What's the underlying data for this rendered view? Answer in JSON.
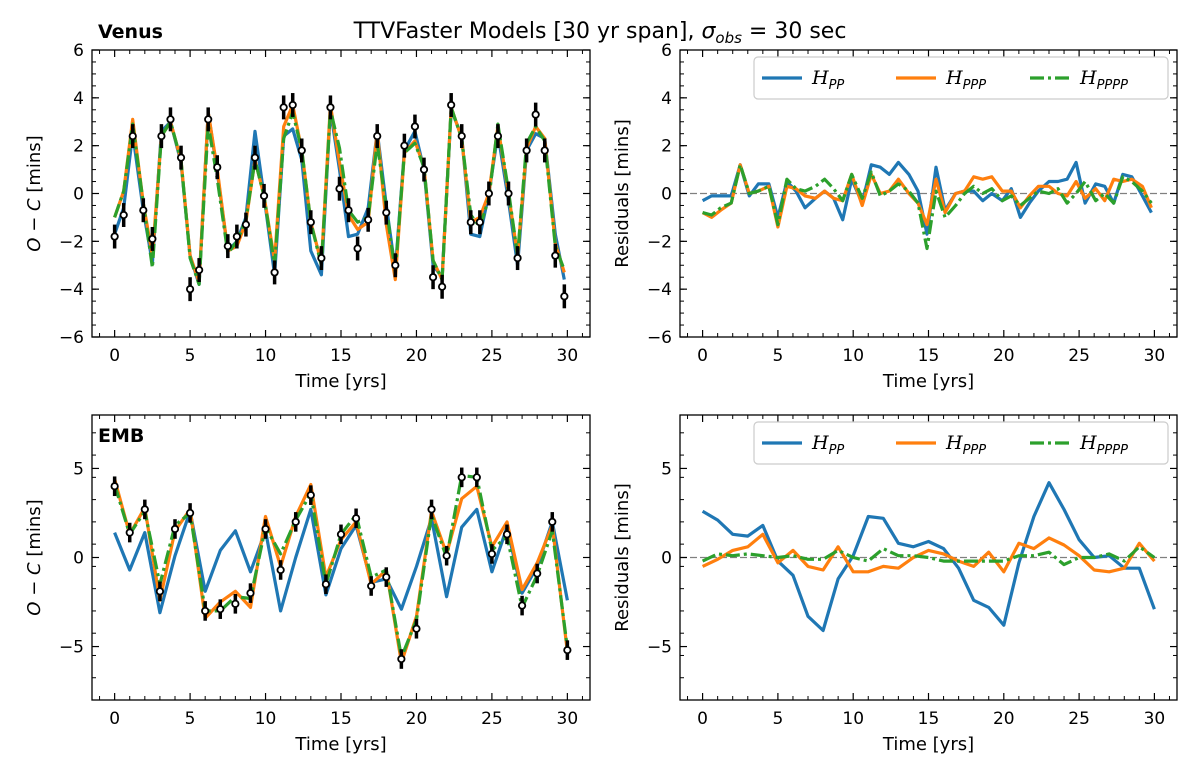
{
  "figure": {
    "title_prefix": "TTVFaster Models [30 yr span], ",
    "title_math": "σ_obs = 30 sec"
  },
  "colors": {
    "PP": "#1f77b4",
    "PPP": "#ff7f0e",
    "PPPP": "#2ca02c",
    "obs": "#000000",
    "zero_line": "#808080"
  },
  "legend_labels": [
    "H_PP",
    "H_PPP",
    "H_PPPP"
  ],
  "chart_data": [
    {
      "id": "venus_oc",
      "type": "line",
      "panel_label": "Venus",
      "xlabel": "Time [yrs]",
      "ylabel": "O − C [mins]",
      "xlim": [
        -1.5,
        31.5
      ],
      "ylim": [
        -6,
        6
      ],
      "xticks": [
        0,
        5,
        10,
        15,
        20,
        25,
        30
      ],
      "yticks": [
        -6,
        -4,
        -2,
        0,
        2,
        4,
        6
      ],
      "legend": "none",
      "x": [
        0,
        0.6,
        1.2,
        1.9,
        2.5,
        3.1,
        3.7,
        4.4,
        5.0,
        5.6,
        6.2,
        6.8,
        7.5,
        8.1,
        8.7,
        9.3,
        9.9,
        10.6,
        11.2,
        11.8,
        12.4,
        13.0,
        13.7,
        14.3,
        14.9,
        15.5,
        16.1,
        16.8,
        17.4,
        18.0,
        18.6,
        19.2,
        19.9,
        20.5,
        21.1,
        21.7,
        22.3,
        23.0,
        23.6,
        24.2,
        24.8,
        25.4,
        26.1,
        26.7,
        27.3,
        27.9,
        28.5,
        29.2,
        29.8
      ],
      "series": [
        {
          "name": "H_PP",
          "key": "PP",
          "style": "solid",
          "values": [
            -1.7,
            -0.6,
            2.5,
            -0.7,
            -2.9,
            2.6,
            3.0,
            1.3,
            -2.6,
            -3.8,
            3.4,
            0.9,
            -2.4,
            -2.0,
            -1.0,
            2.6,
            -0.1,
            -3.4,
            2.4,
            2.7,
            1.4,
            -2.4,
            -3.4,
            3.5,
            1.0,
            -1.8,
            -1.7,
            -0.6,
            2.6,
            -0.5,
            -3.2,
            1.8,
            2.6,
            1.0,
            -3.0,
            -3.5,
            3.5,
            2.4,
            -1.7,
            -1.8,
            0.0,
            2.5,
            -0.3,
            -3.0,
            1.8,
            2.5,
            2.3,
            -1.7,
            -3.6
          ]
        },
        {
          "name": "H_PPP",
          "key": "PPP",
          "style": "solid",
          "values": [
            -1.0,
            0.1,
            3.1,
            -0.4,
            -2.6,
            2.4,
            3.0,
            1.4,
            -2.6,
            -3.7,
            3.4,
            1.0,
            -2.4,
            -2.2,
            -1.2,
            1.4,
            -0.1,
            -2.8,
            2.8,
            3.7,
            1.8,
            -1.2,
            -2.9,
            3.7,
            1.3,
            -0.9,
            -1.5,
            -1.2,
            2.6,
            -1.3,
            -3.6,
            1.7,
            2.2,
            1.1,
            -2.8,
            -3.6,
            3.6,
            2.3,
            -1.2,
            -1.0,
            0.0,
            2.8,
            0.0,
            -2.6,
            1.9,
            2.8,
            2.3,
            -2.1,
            -3.3
          ]
        },
        {
          "name": "H_PPPP",
          "key": "PPPP",
          "style": "dashdot",
          "values": [
            -1.0,
            0.1,
            2.9,
            -0.4,
            -3.1,
            2.4,
            3.0,
            1.4,
            -2.7,
            -3.8,
            2.9,
            0.6,
            -2.5,
            -2.0,
            -1.1,
            1.4,
            -0.1,
            -3.0,
            2.3,
            3.4,
            1.8,
            -1.2,
            -3.0,
            3.5,
            1.9,
            -0.7,
            -1.2,
            -1.0,
            2.1,
            -0.6,
            -3.3,
            1.7,
            2.1,
            1.1,
            -2.8,
            -3.6,
            3.6,
            2.3,
            -0.9,
            -1.4,
            -0.2,
            2.9,
            0.1,
            -2.6,
            2.1,
            2.8,
            2.2,
            -2.2,
            -3.2
          ]
        }
      ],
      "observations": {
        "x": [
          0,
          0.6,
          1.2,
          1.9,
          2.5,
          3.1,
          3.7,
          4.4,
          5.0,
          5.6,
          6.2,
          6.8,
          7.5,
          8.1,
          8.7,
          9.3,
          9.9,
          10.6,
          11.2,
          11.8,
          12.4,
          13.0,
          13.7,
          14.3,
          14.9,
          15.5,
          16.1,
          16.8,
          17.4,
          18.0,
          18.6,
          19.2,
          19.9,
          20.5,
          21.1,
          21.7,
          22.3,
          23.0,
          23.6,
          24.2,
          24.8,
          25.4,
          26.1,
          26.7,
          27.3,
          27.9,
          28.5,
          29.2,
          29.8
        ],
        "values": [
          -1.8,
          -0.9,
          2.4,
          -0.7,
          -1.9,
          2.4,
          3.1,
          1.5,
          -4.0,
          -3.2,
          3.1,
          1.1,
          -2.2,
          -1.8,
          -1.3,
          1.5,
          -0.1,
          -3.3,
          3.6,
          3.7,
          1.8,
          -1.2,
          -2.7,
          3.6,
          0.2,
          -0.7,
          -2.3,
          -1.1,
          2.4,
          -0.8,
          -3.0,
          2.0,
          2.8,
          1.0,
          -3.5,
          -3.9,
          3.7,
          2.4,
          -1.2,
          -1.2,
          0.0,
          2.4,
          0.0,
          -2.7,
          1.8,
          3.3,
          1.8,
          -2.6,
          -4.3
        ],
        "error": 0.5
      }
    },
    {
      "id": "venus_resid",
      "type": "line",
      "panel_label": "",
      "xlabel": "Time [yrs]",
      "ylabel": "Residuals [mins]",
      "xlim": [
        -1.5,
        31.5
      ],
      "ylim": [
        -6,
        6
      ],
      "xticks": [
        0,
        5,
        10,
        15,
        20,
        25,
        30
      ],
      "yticks": [
        -6,
        -4,
        -2,
        0,
        2,
        4,
        6
      ],
      "legend": "top-right",
      "x": [
        0,
        0.6,
        1.2,
        1.9,
        2.5,
        3.1,
        3.7,
        4.4,
        5.0,
        5.6,
        6.2,
        6.8,
        7.5,
        8.1,
        8.7,
        9.3,
        9.9,
        10.6,
        11.2,
        11.8,
        12.4,
        13.0,
        13.7,
        14.3,
        14.9,
        15.5,
        16.1,
        16.8,
        17.4,
        18.0,
        18.6,
        19.2,
        19.9,
        20.5,
        21.1,
        21.7,
        22.3,
        23.0,
        23.6,
        24.2,
        24.8,
        25.4,
        26.1,
        26.7,
        27.3,
        27.9,
        28.5,
        29.2,
        29.8
      ],
      "series": [
        {
          "name": "H_PP",
          "key": "PP",
          "style": "solid",
          "values": [
            -0.3,
            -0.1,
            -0.1,
            -0.1,
            1.2,
            -0.1,
            0.4,
            0.4,
            -1.0,
            0.5,
            0.1,
            -0.6,
            -0.2,
            0.1,
            -0.2,
            -1.1,
            0.6,
            -0.4,
            1.2,
            1.1,
            0.8,
            1.3,
            0.8,
            0.1,
            -1.7,
            1.1,
            -0.7,
            0.0,
            0.1,
            0.1,
            -0.3,
            0.0,
            -0.3,
            0.2,
            -1.0,
            -0.4,
            0.1,
            0.5,
            0.5,
            0.6,
            1.3,
            -0.4,
            0.4,
            0.3,
            -0.4,
            0.8,
            0.7,
            -0.1,
            -0.8
          ]
        },
        {
          "name": "H_PPP",
          "key": "PPP",
          "style": "solid",
          "values": [
            -0.8,
            -1.0,
            -0.7,
            -0.4,
            1.2,
            0.0,
            0.1,
            0.3,
            -1.4,
            0.3,
            0.2,
            -0.1,
            -0.2,
            0.1,
            -0.2,
            -0.3,
            0.8,
            -0.5,
            0.8,
            0.0,
            0.1,
            0.6,
            0.0,
            -0.4,
            -1.3,
            0.6,
            -0.8,
            0.0,
            0.1,
            0.7,
            0.6,
            0.7,
            0.1,
            0.1,
            -0.6,
            -0.1,
            0.3,
            0.3,
            0.0,
            -0.1,
            0.5,
            -0.2,
            0.2,
            -0.3,
            0.6,
            0.5,
            0.6,
            0.3,
            -0.6
          ]
        },
        {
          "name": "H_PPPP",
          "key": "PPPP",
          "style": "dashdot",
          "values": [
            -0.8,
            -0.9,
            -0.6,
            -0.4,
            1.2,
            0.0,
            0.1,
            0.3,
            -1.3,
            0.6,
            0.2,
            0.1,
            0.3,
            0.6,
            0.2,
            -0.3,
            0.8,
            -0.2,
            0.9,
            -0.1,
            0.1,
            0.4,
            0.1,
            -0.4,
            -2.3,
            0.1,
            -1.0,
            -0.5,
            0.0,
            0.3,
            0.0,
            0.2,
            -0.3,
            -0.1,
            -0.5,
            -0.2,
            0.1,
            0.0,
            0.2,
            -0.4,
            0.0,
            0.5,
            -0.3,
            0.0,
            -0.4,
            0.7,
            0.5,
            0.1,
            -0.4
          ]
        }
      ],
      "zero_line": true
    },
    {
      "id": "emb_oc",
      "type": "line",
      "panel_label": "EMB",
      "xlabel": "Time [yrs]",
      "ylabel": "O − C [mins]",
      "xlim": [
        -1.5,
        31.5
      ],
      "ylim": [
        -8,
        8
      ],
      "xticks": [
        0,
        5,
        10,
        15,
        20,
        25,
        30
      ],
      "yticks": [
        -5,
        0,
        5
      ],
      "legend": "none",
      "x": [
        0,
        1,
        2,
        3,
        4,
        5,
        6,
        7,
        8,
        9,
        10,
        11,
        12,
        13,
        14,
        15,
        16,
        17,
        18,
        19,
        20,
        21,
        22,
        23,
        24,
        25,
        26,
        27,
        28,
        29,
        30
      ],
      "series": [
        {
          "name": "H_PP",
          "key": "PP",
          "style": "solid",
          "values": [
            1.4,
            -0.7,
            1.4,
            -3.1,
            0.1,
            2.6,
            -1.9,
            0.4,
            1.5,
            -0.8,
            1.5,
            -3.0,
            0.0,
            2.7,
            -2.1,
            0.5,
            1.8,
            -1.4,
            -1.2,
            -2.9,
            -0.5,
            2.2,
            -2.2,
            1.7,
            2.7,
            -0.8,
            1.7,
            -2.0,
            -0.5,
            2.0,
            -2.4
          ]
        },
        {
          "name": "H_PPP",
          "key": "PPP",
          "style": "solid",
          "values": [
            4.4,
            1.3,
            2.8,
            -2.4,
            1.5,
            2.7,
            -3.4,
            -2.5,
            -1.9,
            -2.8,
            2.3,
            -0.5,
            2.3,
            4.1,
            -1.1,
            1.0,
            2.0,
            -1.5,
            -0.7,
            -5.9,
            -3.3,
            2.6,
            0.2,
            3.3,
            4.0,
            0.6,
            2.0,
            -1.8,
            -0.3,
            1.8,
            -5.3
          ]
        },
        {
          "name": "H_PPPP",
          "key": "PPPP",
          "style": "dashdot",
          "values": [
            4.1,
            1.3,
            2.6,
            -1.5,
            1.8,
            2.5,
            -3.0,
            -3.0,
            -2.2,
            -2.3,
            1.7,
            0.2,
            2.1,
            3.6,
            -1.5,
            1.3,
            2.4,
            -1.1,
            -0.7,
            -5.6,
            -3.5,
            2.4,
            0.0,
            4.6,
            4.5,
            0.4,
            1.2,
            -2.8,
            -1.0,
            1.5,
            -5.1
          ]
        }
      ],
      "observations": {
        "x": [
          0,
          1,
          2,
          3,
          4,
          5,
          6,
          7,
          8,
          9,
          10,
          11,
          12,
          13,
          14,
          15,
          16,
          17,
          18,
          19,
          20,
          21,
          22,
          23,
          24,
          25,
          26,
          27,
          28,
          29,
          30
        ],
        "values": [
          4.0,
          1.4,
          2.7,
          -1.9,
          1.6,
          2.5,
          -3.0,
          -2.9,
          -2.6,
          -2.0,
          1.6,
          -0.7,
          2.0,
          3.5,
          -1.5,
          1.3,
          2.2,
          -1.6,
          -1.1,
          -5.7,
          -4.0,
          2.7,
          0.1,
          4.5,
          4.5,
          0.2,
          1.3,
          -2.7,
          -0.9,
          2.0,
          -5.2
        ],
        "error": 0.55
      }
    },
    {
      "id": "emb_resid",
      "type": "line",
      "panel_label": "",
      "xlabel": "Time [yrs]",
      "ylabel": "Residuals [mins]",
      "xlim": [
        -1.5,
        31.5
      ],
      "ylim": [
        -8,
        8
      ],
      "xticks": [
        0,
        5,
        10,
        15,
        20,
        25,
        30
      ],
      "yticks": [
        -5,
        0,
        5
      ],
      "legend": "top-right",
      "x": [
        0,
        1,
        2,
        3,
        4,
        5,
        6,
        7,
        8,
        9,
        10,
        11,
        12,
        13,
        14,
        15,
        16,
        17,
        18,
        19,
        20,
        21,
        22,
        23,
        24,
        25,
        26,
        27,
        28,
        29,
        30
      ],
      "series": [
        {
          "name": "H_PP",
          "key": "PP",
          "style": "solid",
          "values": [
            2.6,
            2.1,
            1.3,
            1.2,
            1.8,
            -0.2,
            -1.0,
            -3.3,
            -4.1,
            -1.2,
            0.1,
            2.3,
            2.2,
            0.8,
            0.6,
            0.9,
            0.5,
            -0.6,
            -2.4,
            -2.8,
            -3.8,
            -0.3,
            2.3,
            4.2,
            2.7,
            1.0,
            0.0,
            0.1,
            -0.6,
            -0.6,
            -2.9
          ]
        },
        {
          "name": "H_PPP",
          "key": "PPP",
          "style": "solid",
          "values": [
            -0.5,
            -0.1,
            0.4,
            0.6,
            1.3,
            -0.3,
            0.4,
            -0.5,
            -0.7,
            0.6,
            -0.8,
            -0.8,
            -0.5,
            -0.6,
            0.0,
            0.4,
            0.2,
            -0.2,
            -0.5,
            0.3,
            -0.8,
            0.8,
            0.5,
            1.1,
            0.7,
            0.1,
            -0.7,
            -0.8,
            -0.6,
            0.8,
            -0.2
          ]
        },
        {
          "name": "H_PPPP",
          "key": "PPPP",
          "style": "dashdot",
          "values": [
            -0.2,
            0.2,
            0.1,
            0.2,
            0.1,
            0.0,
            0.1,
            -0.1,
            -0.1,
            0.4,
            0.0,
            -0.2,
            0.5,
            0.1,
            0.1,
            0.0,
            -0.2,
            -0.2,
            -0.2,
            -0.2,
            -0.2,
            0.1,
            0.1,
            0.3,
            -0.4,
            0.0,
            0.0,
            0.2,
            -0.2,
            0.6,
            0.0
          ]
        }
      ],
      "zero_line": true
    }
  ]
}
